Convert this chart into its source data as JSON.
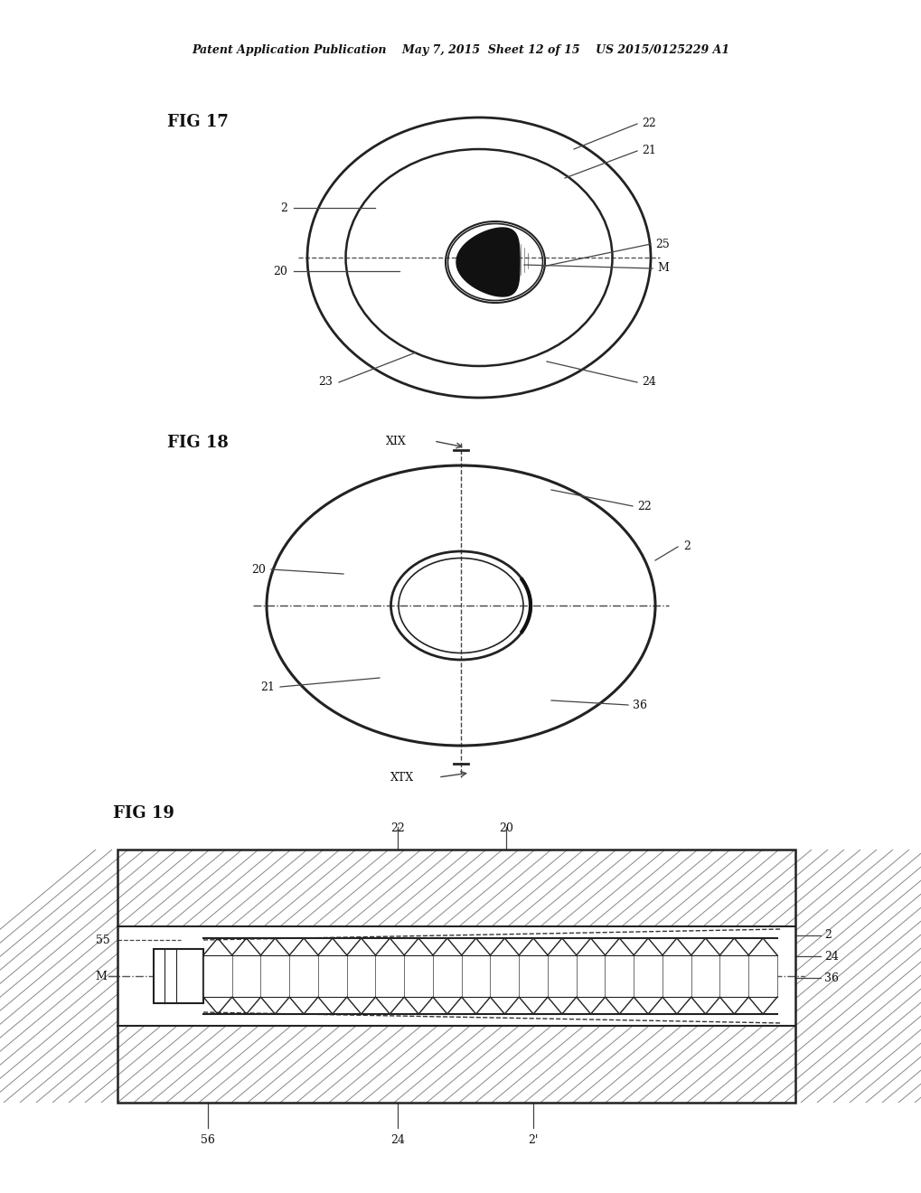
{
  "bg_color": "#ffffff",
  "header_text": "Patent Application Publication    May 7, 2015  Sheet 12 of 15    US 2015/0125229 A1",
  "fig17_label": "FIG 17",
  "fig18_label": "FIG 18",
  "fig19_label": "FIG 19",
  "line_color": "#222222",
  "text_color": "#111111"
}
